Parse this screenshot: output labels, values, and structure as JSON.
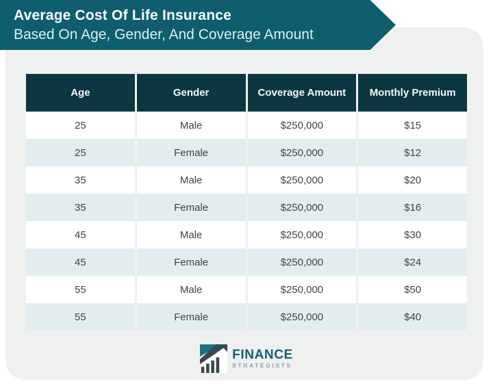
{
  "banner": {
    "title": "Average Cost Of Life Insurance",
    "subtitle": "Based On Age, Gender, And Coverage Amount"
  },
  "chart_data": {
    "type": "table",
    "title": "Average Cost Of Life Insurance Based On Age, Gender, And Coverage Amount",
    "columns": [
      "Age",
      "Gender",
      "Coverage Amount",
      "Monthly Premium"
    ],
    "rows": [
      [
        "25",
        "Male",
        "$250,000",
        "$15"
      ],
      [
        "25",
        "Female",
        "$250,000",
        "$12"
      ],
      [
        "35",
        "Male",
        "$250,000",
        "$20"
      ],
      [
        "35",
        "Female",
        "$250,000",
        "$16"
      ],
      [
        "45",
        "Male",
        "$250,000",
        "$30"
      ],
      [
        "45",
        "Female",
        "$250,000",
        "$24"
      ],
      [
        "55",
        "Male",
        "$250,000",
        "$50"
      ],
      [
        "55",
        "Female",
        "$250,000",
        "$40"
      ]
    ],
    "notes": "Rows alternate white and light blue-gray; monthly premium rises with age, male premiums higher than female at each age"
  },
  "footer": {
    "logo_primary": "FINANCE",
    "logo_secondary": "STRATEGISTS",
    "logo_icon": "bar-chart-arrow-icon"
  },
  "colors": {
    "banner_teal": "#0e5e6e",
    "table_header": "#0c3640",
    "row_alt": "#e3edf0",
    "card_bg": "#eff1f1",
    "cell_text": "#3f4448",
    "logo_text": "#14616f",
    "logo_dark": "#37474f"
  }
}
